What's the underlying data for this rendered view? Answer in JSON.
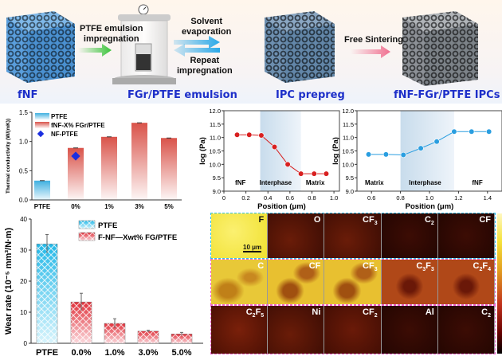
{
  "process": {
    "stages": [
      "fNF",
      "FGr/PTFE emulsion",
      "IPC prepreg",
      "fNF-FGr/PTFE IPCs"
    ],
    "step1": [
      "PTFE emulsion",
      "impregnation"
    ],
    "step2a": [
      "Solvent",
      "evaporation"
    ],
    "step2b": [
      "Repeat",
      "impregnation"
    ],
    "step3": "Free Sintering",
    "colors": {
      "label": "#1d2fc9",
      "arrow1": "#3cc43c",
      "arrow2": "#2aa8e8",
      "arrow3": "#f07090",
      "foam_blue": "#4a9ad8",
      "foam_gray": "#8a9096"
    }
  },
  "chart_data": [
    {
      "type": "bar",
      "ylabel": "Thermal conductivity (W/(mK))",
      "ylim": [
        0,
        1.5
      ],
      "yticks": [
        "0.0",
        "0.5",
        "1.0",
        "1.5"
      ],
      "categories": [
        "PTFE",
        "0%",
        "1%",
        "3%",
        "5%"
      ],
      "values": [
        0.33,
        0.89,
        1.08,
        1.32,
        1.06
      ],
      "legend": [
        "PTFE",
        "fNF-X% FGr/PTFE",
        "NF-PTFE"
      ],
      "legend_placement": "top-left",
      "points": [
        {
          "name": "NF-PTFE",
          "category": "0%",
          "value": 0.75
        }
      ],
      "colors": {
        "PTFE": "#3fb0e0",
        "fNF": "#d9534a",
        "NF": "#1b2fe0"
      }
    },
    {
      "type": "line",
      "xlabel": "Position (μm)",
      "ylabel": "log (Pa)",
      "xlim": [
        0,
        1.0
      ],
      "ylim": [
        9.0,
        12.0
      ],
      "xticks": [
        "0",
        "0.2",
        "0.4",
        "0.6",
        "0.8",
        "1.0"
      ],
      "yticks": [
        "9.0",
        "9.5",
        "10.0",
        "10.5",
        "11.0",
        "11.5",
        "12.0"
      ],
      "x": [
        0.12,
        0.23,
        0.34,
        0.46,
        0.58,
        0.7,
        0.82,
        0.93
      ],
      "y": [
        11.1,
        11.1,
        11.08,
        10.65,
        10.0,
        9.65,
        9.65,
        9.65
      ],
      "shaded_region": [
        0.33,
        0.7
      ],
      "annotations": [
        "fNF",
        "Interphase",
        "Matrix"
      ],
      "color": "#d82020"
    },
    {
      "type": "line",
      "xlabel": "Position (μm)",
      "ylabel": "log (Pa)",
      "xlim": [
        0.5,
        1.5
      ],
      "ylim": [
        9.0,
        12.0
      ],
      "xticks": [
        "0.6",
        "0.8",
        "1.0",
        "1.2",
        "1.4"
      ],
      "yticks": [
        "9.0",
        "9.5",
        "10.0",
        "10.5",
        "11.0",
        "11.5",
        "12.0"
      ],
      "x": [
        0.58,
        0.7,
        0.82,
        0.94,
        1.05,
        1.17,
        1.29,
        1.41
      ],
      "y": [
        10.37,
        10.37,
        10.35,
        10.6,
        10.85,
        11.22,
        11.22,
        11.22
      ],
      "shaded_region": [
        0.8,
        1.17
      ],
      "annotations": [
        "Matrix",
        "Interphase",
        "fNF"
      ],
      "color": "#2a9ee0"
    },
    {
      "type": "bar",
      "ylabel": "Wear rate (10⁻⁵ mm³/N·m)",
      "ylim": [
        0,
        40
      ],
      "yticks": [
        "0",
        "10",
        "20",
        "30",
        "40"
      ],
      "categories": [
        "PTFE",
        "0.0%",
        "1.0%",
        "3.0%",
        "5.0%"
      ],
      "values": [
        32,
        13.3,
        6.4,
        3.9,
        3.0
      ],
      "errors": [
        3,
        2.8,
        1.5,
        0.3,
        0.5
      ],
      "legend": [
        "PTFE",
        "F-NF—Xwt% FG/PTFE"
      ],
      "legend_placement": "top-right",
      "colors": {
        "PTFE": "#22b8e8",
        "composite": "#e0303a"
      }
    }
  ],
  "maps": {
    "rows": [
      [
        {
          "l": "F",
          "c": "yellow"
        },
        {
          "l": "O",
          "c": "dark"
        },
        {
          "l": "CF",
          "s": "3",
          "c": "dark"
        },
        {
          "l": "C",
          "s": "2",
          "c": "darker"
        },
        {
          "l": "CF",
          "c": "darker"
        }
      ],
      [
        {
          "l": "C",
          "c": "yellow2"
        },
        {
          "l": "CF",
          "c": "yellow3"
        },
        {
          "l": "CF",
          "s": "3",
          "c": "yellow3"
        },
        {
          "l": "C",
          "s": "3",
          "l2": "F",
          "s2": "3",
          "c": "orange"
        },
        {
          "l": "C",
          "s": "2",
          "l2": "F",
          "s2": "4",
          "c": "orange"
        }
      ],
      [
        {
          "l": "C",
          "s": "2",
          "l2": "F",
          "s2": "5",
          "c": "red"
        },
        {
          "l": "Ni",
          "c": "dark"
        },
        {
          "l": "CF",
          "s": "2",
          "c": "red2"
        },
        {
          "l": "Al",
          "c": "darker"
        },
        {
          "l": "C",
          "s": "2",
          "c": "darker"
        }
      ]
    ],
    "scalebar": "10 μm",
    "frame_colors": {
      "top": "#2ec0f0",
      "bottom": "#f060d0"
    }
  }
}
